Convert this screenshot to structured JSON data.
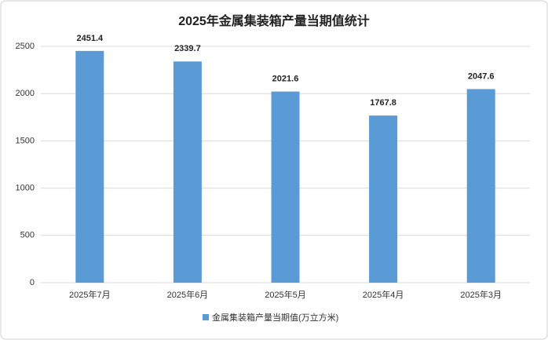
{
  "chart_data": {
    "type": "bar",
    "title": "2025年金属集装箱产量当期值统计",
    "categories": [
      "2025年7月",
      "2025年6月",
      "2025年5月",
      "2025年4月",
      "2025年3月"
    ],
    "series": [
      {
        "name": "金属集装箱产量当期值(万立方米)",
        "color": "#5b9bd5",
        "values": [
          2451.4,
          2339.7,
          2021.6,
          1767.8,
          2047.6
        ]
      }
    ],
    "ylim": [
      0,
      2500
    ],
    "yticks": [
      0,
      500,
      1000,
      1500,
      2000,
      2500
    ],
    "grid": true,
    "legend": "bottom"
  }
}
